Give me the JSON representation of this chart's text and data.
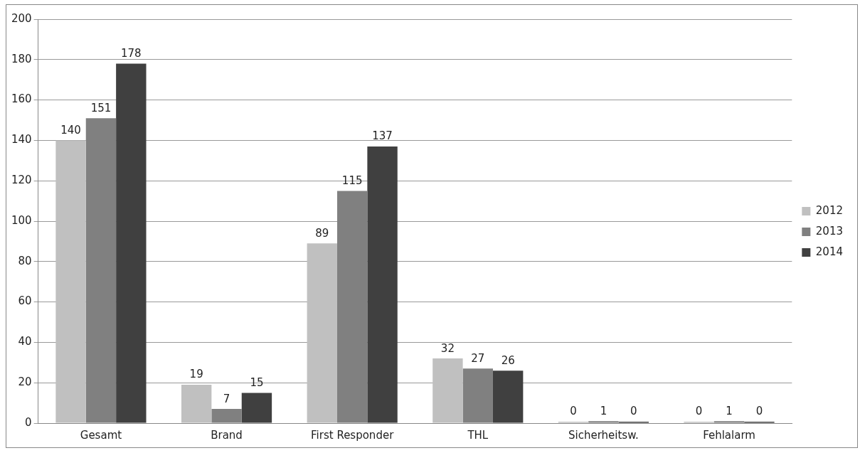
{
  "chart_data": {
    "type": "bar",
    "categories": [
      "Gesamt",
      "Brand",
      "First Responder",
      "THL",
      "Sicherheitsw.",
      "Fehlalarm"
    ],
    "series": [
      {
        "name": "2012",
        "color": "#c0c0c0",
        "values": [
          140,
          19,
          89,
          32,
          0,
          0
        ]
      },
      {
        "name": "2013",
        "color": "#808080",
        "values": [
          151,
          7,
          115,
          27,
          1,
          1
        ]
      },
      {
        "name": "2014",
        "color": "#404040",
        "values": [
          178,
          15,
          137,
          26,
          0,
          0
        ]
      }
    ],
    "ylim": [
      0,
      200
    ],
    "yticks": [
      0,
      20,
      40,
      60,
      80,
      100,
      120,
      140,
      160,
      180,
      200
    ],
    "grid": "y",
    "legend": "right",
    "data_labels": true
  }
}
